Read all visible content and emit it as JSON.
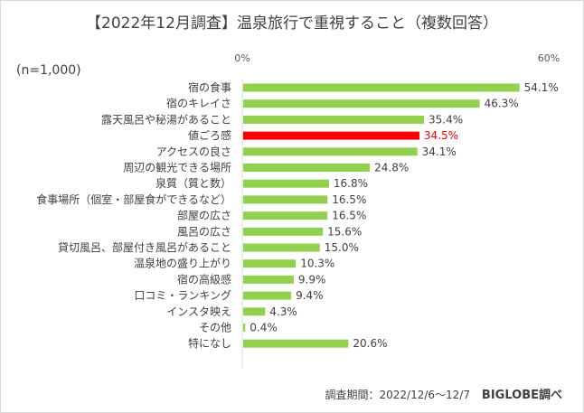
{
  "chart_data": {
    "type": "bar",
    "orientation": "horizontal",
    "title": "【2022年12月調査】温泉旅行で重視すること（複数回答）",
    "sample_note": "(n=1,000)",
    "xlim": [
      0,
      60
    ],
    "tick_labels": [
      "0%",
      "60%"
    ],
    "categories": [
      "宿の食事",
      "宿のキレイさ",
      "露天風呂や秘湯があること",
      "値ごろ感",
      "アクセスの良さ",
      "周辺の観光できる場所",
      "泉質（質と数）",
      "食事場所（個室・部屋食ができるなど）",
      "部屋の広さ",
      "風呂の広さ",
      "貸切風呂、部屋付き風呂があること",
      "温泉地の盛り上がり",
      "宿の高級感",
      "口コミ・ランキング",
      "インスタ映え",
      "その他",
      "特になし"
    ],
    "values": [
      54.1,
      46.3,
      35.4,
      34.5,
      34.1,
      24.8,
      16.8,
      16.5,
      16.5,
      15.6,
      15.0,
      10.3,
      9.9,
      9.4,
      4.3,
      0.4,
      20.6
    ],
    "data_labels": [
      "54.1%",
      "46.3%",
      "35.4%",
      "34.5%",
      "34.1%",
      "24.8%",
      "16.8%",
      "16.5%",
      "16.5%",
      "15.6%",
      "15.0%",
      "10.3%",
      "9.9%",
      "9.4%",
      "4.3%",
      "0.4%",
      "20.6%"
    ],
    "highlight_index": 3,
    "colors": {
      "bar": "#92d050",
      "highlight": "#ff0000",
      "text": "#404040",
      "axis": "#d9d9d9"
    },
    "grid": false,
    "legend": "none"
  },
  "footer": {
    "survey_period": "調査期間：2022/12/6～12/7",
    "source": "BIGLOBE調べ"
  }
}
